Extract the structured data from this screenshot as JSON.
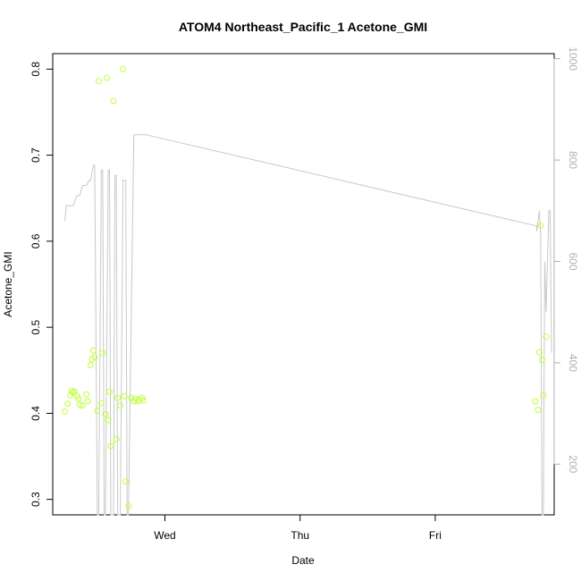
{
  "chart_data": {
    "type": "scatter",
    "title": "ATOM4 Northeast_Pacific_1 Acetone_GMI",
    "xlabel": "Date",
    "ylabel": "Acetone_GMI",
    "x_ticks": [
      "Wed",
      "Thu",
      "Fri"
    ],
    "y_ticks": [
      "0.3",
      "0.4",
      "0.5",
      "0.6",
      "0.7",
      "0.8"
    ],
    "y_right_ticks": [
      "200",
      "400",
      "600",
      "800",
      "1000"
    ],
    "xlim_days": [
      -0.83,
      2.88
    ],
    "ylim": [
      0.282,
      0.818
    ],
    "y_right_lim": [
      1010,
      100
    ],
    "colors": {
      "points": "#bfff3a",
      "line": "#c8c8c8",
      "axis": "#000000",
      "right_axis": "#b0b0b0"
    },
    "series": [
      {
        "kind": "points",
        "x_days": [
          -0.74,
          -0.72,
          -0.7,
          -0.69,
          -0.68,
          -0.67,
          -0.65,
          -0.64,
          -0.63,
          -0.61,
          -0.58,
          -0.57,
          -0.55,
          -0.54,
          -0.53,
          -0.52,
          -0.5,
          -0.49,
          -0.47,
          -0.46,
          -0.44,
          -0.43,
          -0.42,
          -0.41,
          -0.4,
          -0.38,
          -0.36,
          -0.35,
          -0.33,
          -0.31,
          -0.3,
          -0.29,
          -0.27,
          -0.25,
          -0.23,
          -0.22,
          -0.2,
          -0.19,
          -0.17,
          -0.16,
          2.74,
          2.76,
          2.77,
          2.78,
          2.79,
          2.8,
          2.82
        ],
        "y": [
          0.402,
          0.411,
          0.421,
          0.426,
          0.424,
          0.425,
          0.42,
          0.417,
          0.41,
          0.409,
          0.422,
          0.414,
          0.456,
          0.463,
          0.473,
          0.465,
          0.403,
          0.786,
          0.412,
          0.47,
          0.399,
          0.79,
          0.392,
          0.425,
          0.362,
          0.763,
          0.37,
          0.418,
          0.409,
          0.8,
          0.42,
          0.321,
          0.292,
          0.418,
          0.414,
          0.417,
          0.414,
          0.416,
          0.418,
          0.415,
          0.414,
          0.404,
          0.471,
          0.618,
          0.462,
          0.421,
          0.489
        ]
      },
      {
        "kind": "line",
        "axis": "right",
        "x_days": [
          -0.74,
          -0.73,
          -0.72,
          -0.7,
          -0.68,
          -0.65,
          -0.63,
          -0.61,
          -0.6,
          -0.58,
          -0.56,
          -0.55,
          -0.53,
          -0.52,
          -0.5,
          -0.49,
          -0.47,
          -0.46,
          -0.45,
          -0.44,
          -0.42,
          -0.41,
          -0.4,
          -0.38,
          -0.37,
          -0.36,
          -0.35,
          -0.33,
          -0.31,
          -0.29,
          -0.28,
          -0.27,
          -0.23,
          -0.18,
          -0.16,
          -0.14,
          2.75,
          2.75,
          2.76,
          2.77,
          2.78,
          2.79,
          2.8,
          2.81,
          2.82,
          2.84,
          2.85,
          2.86
        ],
        "y_right": [
          680,
          710,
          710,
          710,
          710,
          730,
          730,
          750,
          750,
          750,
          760,
          760,
          790,
          790,
          100,
          100,
          780,
          780,
          100,
          100,
          780,
          780,
          100,
          100,
          770,
          770,
          100,
          100,
          760,
          760,
          100,
          100,
          850,
          850,
          850,
          850,
          670,
          660,
          680,
          700,
          650,
          100,
          100,
          600,
          500,
          700,
          700,
          420
        ]
      }
    ]
  }
}
